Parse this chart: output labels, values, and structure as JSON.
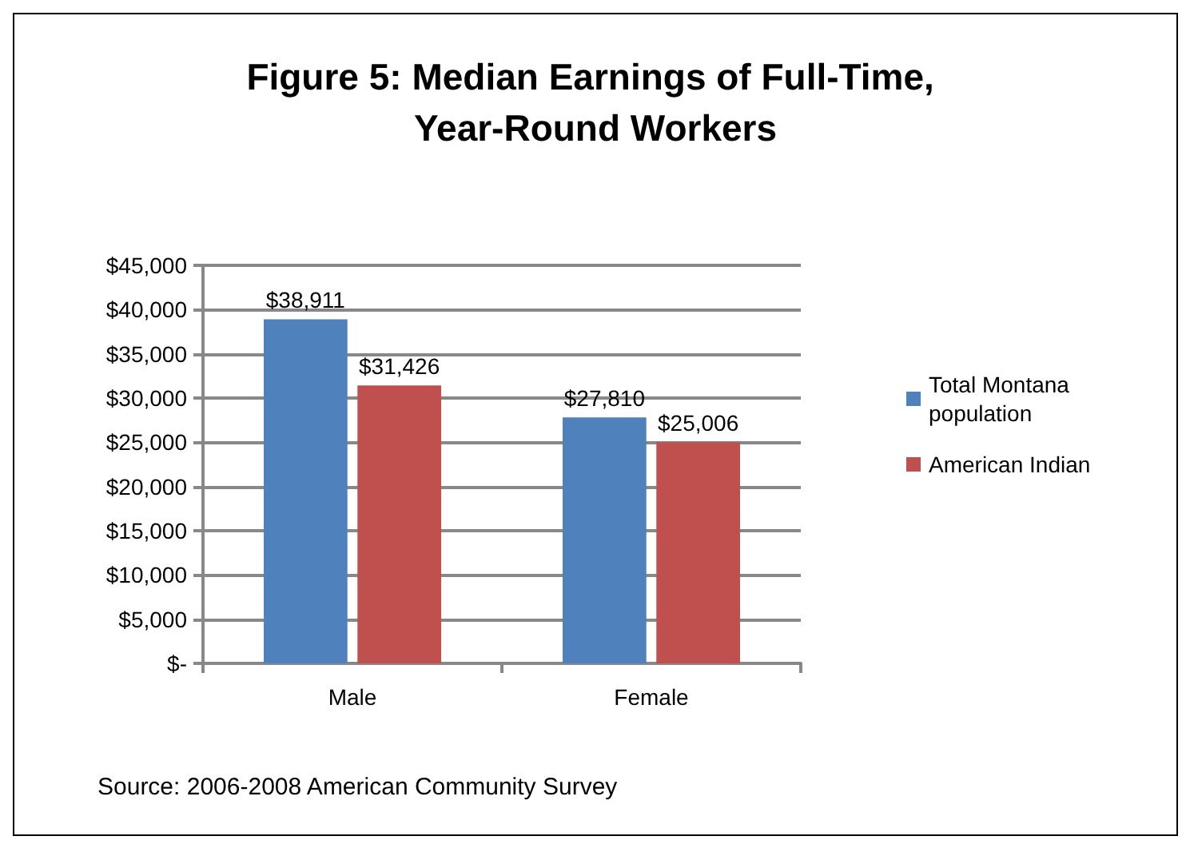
{
  "chart_data": {
    "type": "bar",
    "title": "Figure 5: Median Earnings of Full-Time, Year-Round Workers",
    "categories": [
      "Male",
      "Female"
    ],
    "series": [
      {
        "name": "Total Montana population",
        "color": "#4f81bd",
        "values": [
          38911,
          27810
        ],
        "value_labels": [
          "$38,911",
          "$27,810"
        ]
      },
      {
        "name": "American Indian",
        "color": "#c0504d",
        "values": [
          31426,
          25006
        ],
        "value_labels": [
          "$31,426",
          "$25,006"
        ]
      }
    ],
    "ylim": [
      0,
      45000
    ],
    "yticks": [
      {
        "value": 0,
        "label": "$-"
      },
      {
        "value": 5000,
        "label": "$5,000"
      },
      {
        "value": 10000,
        "label": "$10,000"
      },
      {
        "value": 15000,
        "label": "$15,000"
      },
      {
        "value": 20000,
        "label": "$20,000"
      },
      {
        "value": 25000,
        "label": "$25,000"
      },
      {
        "value": 30000,
        "label": "$30,000"
      },
      {
        "value": 35000,
        "label": "$35,000"
      },
      {
        "value": 40000,
        "label": "$40,000"
      },
      {
        "value": 45000,
        "label": "$45,000"
      }
    ],
    "grid": "y",
    "legend": "right",
    "annotations": [
      "Source: 2006-2008 American Community Survey"
    ]
  }
}
